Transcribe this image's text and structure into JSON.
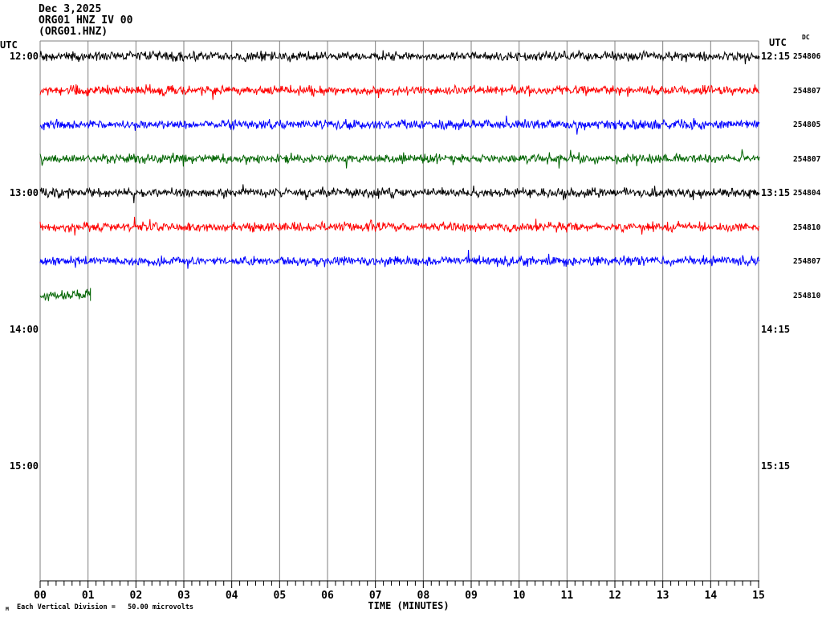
{
  "header": {
    "date": "Dec 3,2025",
    "station_line": "ORG01 HNZ IV 00",
    "channel_line": "(ORG01.HNZ)"
  },
  "axes": {
    "left_axis_label": "UTC",
    "right_axis_label": "UTC",
    "dc_column_label": "DC",
    "left_ticks": [
      {
        "label": "12:00",
        "row": 0
      },
      {
        "label": "13:00",
        "row": 4
      },
      {
        "label": "14:00",
        "row": 8
      },
      {
        "label": "15:00",
        "row": 12
      }
    ],
    "right_ticks": [
      {
        "label": "12:15",
        "row": 0
      },
      {
        "label": "13:15",
        "row": 4
      },
      {
        "label": "14:15",
        "row": 8
      },
      {
        "label": "15:15",
        "row": 12
      }
    ],
    "x_tick_labels": [
      "00",
      "01",
      "02",
      "03",
      "04",
      "05",
      "06",
      "07",
      "08",
      "09",
      "10",
      "11",
      "12",
      "13",
      "14",
      "15"
    ],
    "x_axis_title": "TIME (MINUTES)"
  },
  "footer": {
    "watermark": "M",
    "scale_note": "Each Vertical Division =   50.00 microvolts"
  },
  "colors": {
    "grid": "#7f7f7f",
    "axis": "#000000",
    "trace_black": "#000000",
    "trace_red": "#ff0000",
    "trace_blue": "#0000ff",
    "trace_green": "#006400"
  },
  "chart_data": {
    "type": "line",
    "title": "Helicorder seismogram ORG01 HNZ IV 00 (ORG01.HNZ), Dec 3,2025",
    "xlabel": "TIME (MINUTES)",
    "x_range_minutes": [
      0,
      15
    ],
    "minutes_per_row": 15,
    "grid": "vertical lines every 1 minute, minor ticks every 10 seconds",
    "legend_position": "none",
    "vertical_division_scale": "50.00 microvolts per vertical division",
    "description": "Continuous background seismic noise, approx. +/-1 vertical division peak amplitude, no visible events; recording stops ~1 minute into the 13:45 row.",
    "series": [
      {
        "name": "12:00-12:15 UTC",
        "row": 0,
        "color": "#000000",
        "dc": 254806,
        "coverage_minutes": 15,
        "character": "random noise ~+/-8px"
      },
      {
        "name": "12:15-12:30 UTC",
        "row": 1,
        "color": "#ff0000",
        "dc": 254807,
        "coverage_minutes": 15,
        "character": "random noise ~+/-8px"
      },
      {
        "name": "12:30-12:45 UTC",
        "row": 2,
        "color": "#0000ff",
        "dc": 254805,
        "coverage_minutes": 15,
        "character": "random noise ~+/-8px"
      },
      {
        "name": "12:45-13:00 UTC",
        "row": 3,
        "color": "#006400",
        "dc": 254807,
        "coverage_minutes": 15,
        "character": "random noise ~+/-8px"
      },
      {
        "name": "13:00-13:15 UTC",
        "row": 4,
        "color": "#000000",
        "dc": 254804,
        "coverage_minutes": 15,
        "character": "random noise ~+/-8px"
      },
      {
        "name": "13:15-13:30 UTC",
        "row": 5,
        "color": "#ff0000",
        "dc": 254810,
        "coverage_minutes": 15,
        "character": "random noise ~+/-8px"
      },
      {
        "name": "13:30-13:45 UTC",
        "row": 6,
        "color": "#0000ff",
        "dc": 254807,
        "coverage_minutes": 15,
        "character": "random noise ~+/-8px"
      },
      {
        "name": "13:45-13:46 UTC",
        "row": 7,
        "color": "#006400",
        "dc": 254810,
        "coverage_minutes": 1.05,
        "character": "random noise ~+/-8px, trace ends with vertical cutoff bar"
      }
    ]
  }
}
